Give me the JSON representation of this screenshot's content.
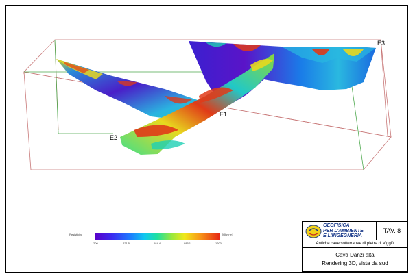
{
  "scene": {
    "labels": {
      "e1": "E1",
      "e2": "E2",
      "e3": "E3"
    }
  },
  "legend": {
    "left_label": "[Resistivity]",
    "right_label": "[Ohm·m]",
    "ticks": [
      "200",
      "421.5",
      "684.4",
      "985.1",
      "1200"
    ],
    "colors": [
      "#5b00c8",
      "#1e78ff",
      "#10c8f0",
      "#9ae83c",
      "#f0e81a",
      "#e62814"
    ]
  },
  "titleblock": {
    "company_line1": "GEOFISICA",
    "company_line2": "PER L'AMBIENTE",
    "company_line3": "E L'INGEGNERIA",
    "tav": "TAV. 8",
    "subtitle": "Antiche cave sotterranee di pietra di Viggiù",
    "title_line1": "Cava Danzi alta",
    "title_line2": "Rendering 3D, vista da sud"
  }
}
